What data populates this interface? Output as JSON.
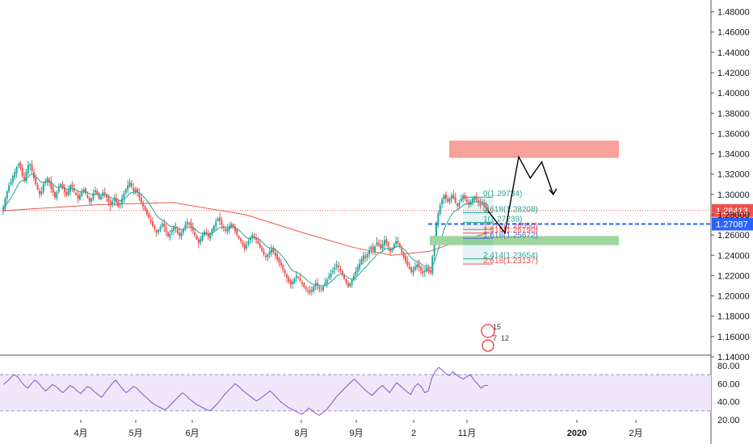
{
  "colors": {
    "up": "#26a69a",
    "down": "#ef5350",
    "ema": "#e8574a",
    "ema_fast": "#26a69a",
    "rsi": "#7e57c2",
    "rsi_band": "#f0e8fa",
    "axis_text": "#131722",
    "price_tag": "#ef5350",
    "level_tag": "#2962ff",
    "resistance_zone": "#f8a09a",
    "support_zone": "#9fd59f"
  },
  "chart_data": [
    {
      "type": "candlestick",
      "title": "",
      "x_axis": {
        "labels": [
          "4月",
          "5月",
          "6月",
          "8月",
          "9月",
          "2",
          "11月",
          "2020",
          "2月"
        ]
      },
      "y_axis": {
        "side": "right",
        "range": [
          1.14,
          1.49
        ],
        "ticks": [
          "1.14000",
          "1.16000",
          "1.18000",
          "1.20000",
          "1.22000",
          "1.24000",
          "1.26000",
          "1.28000",
          "1.30000",
          "1.32000",
          "1.34000",
          "1.36000",
          "1.38000",
          "1.40000",
          "1.42000",
          "1.44000",
          "1.46000",
          "1.48000"
        ]
      },
      "close_path": [
        1.287,
        1.296,
        1.303,
        1.309,
        1.312,
        1.318,
        1.322,
        1.327,
        1.33,
        1.326,
        1.318,
        1.314,
        1.322,
        1.329,
        1.33,
        1.323,
        1.316,
        1.31,
        1.305,
        1.3,
        1.303,
        1.31,
        1.313,
        1.316,
        1.312,
        1.306,
        1.302,
        1.297,
        1.302,
        1.307,
        1.31,
        1.306,
        1.302,
        1.299,
        1.304,
        1.309,
        1.307,
        1.303,
        1.3,
        1.296,
        1.299,
        1.303,
        1.305,
        1.301,
        1.297,
        1.293,
        1.296,
        1.301,
        1.304,
        1.3,
        1.296,
        1.298,
        1.302,
        1.3,
        1.297,
        1.293,
        1.289,
        1.293,
        1.296,
        1.292,
        1.288,
        1.291,
        1.296,
        1.301,
        1.305,
        1.309,
        1.312,
        1.308,
        1.303,
        1.305,
        1.302,
        1.297,
        1.292,
        1.288,
        1.285,
        1.281,
        1.277,
        1.273,
        1.269,
        1.266,
        1.262,
        1.265,
        1.268,
        1.271,
        1.268,
        1.263,
        1.259,
        1.261,
        1.265,
        1.268,
        1.266,
        1.262,
        1.259,
        1.262,
        1.266,
        1.27,
        1.273,
        1.271,
        1.268,
        1.264,
        1.26,
        1.256,
        1.252,
        1.256,
        1.26,
        1.263,
        1.261,
        1.258,
        1.262,
        1.266,
        1.269,
        1.273,
        1.276,
        1.274,
        1.27,
        1.267,
        1.264,
        1.266,
        1.269,
        1.271,
        1.268,
        1.264,
        1.26,
        1.257,
        1.254,
        1.25,
        1.246,
        1.25,
        1.254,
        1.257,
        1.26,
        1.258,
        1.255,
        1.252,
        1.248,
        1.244,
        1.241,
        1.238,
        1.241,
        1.244,
        1.246,
        1.243,
        1.24,
        1.236,
        1.233,
        1.23,
        1.226,
        1.222,
        1.218,
        1.214,
        1.211,
        1.214,
        1.217,
        1.22,
        1.218,
        1.215,
        1.212,
        1.209,
        1.207,
        1.205,
        1.203,
        1.206,
        1.209,
        1.212,
        1.21,
        1.207,
        1.206,
        1.209,
        1.213,
        1.216,
        1.219,
        1.222,
        1.225,
        1.228,
        1.231,
        1.228,
        1.225,
        1.221,
        1.217,
        1.213,
        1.209,
        1.212,
        1.216,
        1.22,
        1.224,
        1.228,
        1.232,
        1.236,
        1.24,
        1.237,
        1.241,
        1.245,
        1.248,
        1.245,
        1.249,
        1.253,
        1.25,
        1.247,
        1.251,
        1.255,
        1.252,
        1.248,
        1.244,
        1.247,
        1.251,
        1.254,
        1.252,
        1.248,
        1.243,
        1.238,
        1.234,
        1.23,
        1.227,
        1.224,
        1.226,
        1.229,
        1.231,
        1.228,
        1.225,
        1.222,
        1.225,
        1.228,
        1.224,
        1.223,
        1.239,
        1.256,
        1.27,
        1.281,
        1.289,
        1.295,
        1.299,
        1.296,
        1.293,
        1.296,
        1.299,
        1.296,
        1.292,
        1.289,
        1.292,
        1.296,
        1.299,
        1.296,
        1.293,
        1.29,
        1.293,
        1.296,
        1.298,
        1.295,
        1.292,
        1.289,
        1.291,
        1.288,
        1.286,
        1.284
      ],
      "moving_average_slow_key": [
        [
          0,
          1.284
        ],
        [
          0.2,
          1.29
        ],
        [
          0.35,
          1.292
        ],
        [
          0.5,
          1.28
        ],
        [
          0.62,
          1.262
        ],
        [
          0.72,
          1.248
        ],
        [
          0.8,
          1.24
        ],
        [
          0.88,
          1.244
        ],
        [
          0.94,
          1.254
        ],
        [
          1.0,
          1.262
        ]
      ],
      "fibonacci_levels": [
        {
          "label": "0(1.29734)",
          "value": 1.29734,
          "color": "#26a69a"
        },
        {
          "label": "0.618(1.28208)",
          "value": 1.28208,
          "color": "#26a69a"
        },
        {
          "label": "1(1.27239)",
          "value": 1.27239,
          "color": "#26a69a"
        },
        {
          "label": "1.272(1.26550)",
          "value": 1.2655,
          "color": "#ef5350"
        },
        {
          "label": "1.414(1.26190)",
          "value": 1.2619,
          "color": "#ef5350"
        },
        {
          "label": "1.618(1.25672)",
          "value": 1.25672,
          "color": "#5c6bc0"
        },
        {
          "label": "2.414(1.23654)",
          "value": 1.23654,
          "color": "#26a69a"
        },
        {
          "label": "2.618(1.23137)",
          "value": 1.23137,
          "color": "#ef5350"
        }
      ],
      "zones": [
        {
          "name": "resistance",
          "from": 1.336,
          "to": 1.353
        },
        {
          "name": "support",
          "from": 1.25,
          "to": 1.259
        }
      ],
      "price_tags": [
        {
          "label": "1.28413",
          "value": 1.28413,
          "color": "#ef5350"
        },
        {
          "label": "1.27087",
          "value": 1.27087,
          "color": "#2962ff"
        }
      ],
      "projection_path": [
        [
          0.0,
          1.284
        ],
        [
          0.22,
          1.262
        ],
        [
          0.4,
          1.337
        ],
        [
          0.55,
          1.316
        ],
        [
          0.7,
          1.332
        ],
        [
          0.85,
          1.3
        ]
      ],
      "event_badges": [
        "15",
        "7",
        "12"
      ]
    },
    {
      "type": "line",
      "title": "",
      "y_axis": {
        "range": [
          20,
          80
        ],
        "ticks": [
          "20.00",
          "40.00",
          "60.00",
          "80.00"
        ]
      },
      "band": [
        30,
        70
      ],
      "series": [
        {
          "values": [
            59,
            62,
            66,
            70,
            68,
            63,
            58,
            55,
            60,
            64,
            61,
            56,
            52,
            55,
            59,
            57,
            53,
            50,
            54,
            58,
            56,
            52,
            49,
            53,
            57,
            55,
            51,
            48,
            45,
            50,
            55,
            60,
            64,
            59,
            54,
            50,
            53,
            57,
            55,
            51,
            47,
            44,
            40,
            37,
            35,
            33,
            31,
            34,
            38,
            42,
            46,
            50,
            47,
            43,
            40,
            37,
            35,
            33,
            31,
            30,
            34,
            38,
            43,
            48,
            52,
            56,
            60,
            57,
            53,
            50,
            47,
            44,
            41,
            43,
            46,
            49,
            52,
            48,
            44,
            40,
            37,
            34,
            32,
            30,
            28,
            26,
            29,
            33,
            30,
            27,
            25,
            28,
            31,
            36,
            41,
            46,
            50,
            54,
            58,
            62,
            65,
            61,
            57,
            53,
            50,
            47,
            51,
            55,
            58,
            54,
            50,
            56,
            61,
            58,
            54,
            51,
            48,
            56,
            60,
            57,
            50,
            52,
            66,
            74,
            78,
            75,
            71,
            69,
            73,
            70,
            67,
            65,
            68,
            70,
            64,
            60,
            55,
            58,
            58
          ]
        }
      ]
    }
  ]
}
